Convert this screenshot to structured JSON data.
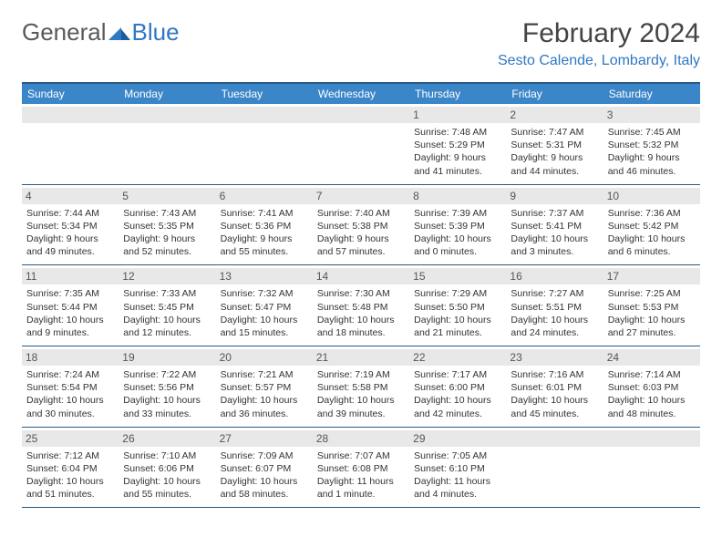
{
  "logo": {
    "text1": "General",
    "text2": "Blue"
  },
  "title": "February 2024",
  "location": "Sesto Calende, Lombardy, Italy",
  "colors": {
    "header_bg": "#3b86c8",
    "border": "#2a5a85",
    "daynum_bg": "#e8e8e8",
    "brand_blue": "#2f78c2"
  },
  "dayNames": [
    "Sunday",
    "Monday",
    "Tuesday",
    "Wednesday",
    "Thursday",
    "Friday",
    "Saturday"
  ],
  "weeks": [
    [
      {
        "empty": true
      },
      {
        "empty": true
      },
      {
        "empty": true
      },
      {
        "empty": true
      },
      {
        "n": "1",
        "sr": "Sunrise: 7:48 AM",
        "ss": "Sunset: 5:29 PM",
        "dl": "Daylight: 9 hours and 41 minutes."
      },
      {
        "n": "2",
        "sr": "Sunrise: 7:47 AM",
        "ss": "Sunset: 5:31 PM",
        "dl": "Daylight: 9 hours and 44 minutes."
      },
      {
        "n": "3",
        "sr": "Sunrise: 7:45 AM",
        "ss": "Sunset: 5:32 PM",
        "dl": "Daylight: 9 hours and 46 minutes."
      }
    ],
    [
      {
        "n": "4",
        "sr": "Sunrise: 7:44 AM",
        "ss": "Sunset: 5:34 PM",
        "dl": "Daylight: 9 hours and 49 minutes."
      },
      {
        "n": "5",
        "sr": "Sunrise: 7:43 AM",
        "ss": "Sunset: 5:35 PM",
        "dl": "Daylight: 9 hours and 52 minutes."
      },
      {
        "n": "6",
        "sr": "Sunrise: 7:41 AM",
        "ss": "Sunset: 5:36 PM",
        "dl": "Daylight: 9 hours and 55 minutes."
      },
      {
        "n": "7",
        "sr": "Sunrise: 7:40 AM",
        "ss": "Sunset: 5:38 PM",
        "dl": "Daylight: 9 hours and 57 minutes."
      },
      {
        "n": "8",
        "sr": "Sunrise: 7:39 AM",
        "ss": "Sunset: 5:39 PM",
        "dl": "Daylight: 10 hours and 0 minutes."
      },
      {
        "n": "9",
        "sr": "Sunrise: 7:37 AM",
        "ss": "Sunset: 5:41 PM",
        "dl": "Daylight: 10 hours and 3 minutes."
      },
      {
        "n": "10",
        "sr": "Sunrise: 7:36 AM",
        "ss": "Sunset: 5:42 PM",
        "dl": "Daylight: 10 hours and 6 minutes."
      }
    ],
    [
      {
        "n": "11",
        "sr": "Sunrise: 7:35 AM",
        "ss": "Sunset: 5:44 PM",
        "dl": "Daylight: 10 hours and 9 minutes."
      },
      {
        "n": "12",
        "sr": "Sunrise: 7:33 AM",
        "ss": "Sunset: 5:45 PM",
        "dl": "Daylight: 10 hours and 12 minutes."
      },
      {
        "n": "13",
        "sr": "Sunrise: 7:32 AM",
        "ss": "Sunset: 5:47 PM",
        "dl": "Daylight: 10 hours and 15 minutes."
      },
      {
        "n": "14",
        "sr": "Sunrise: 7:30 AM",
        "ss": "Sunset: 5:48 PM",
        "dl": "Daylight: 10 hours and 18 minutes."
      },
      {
        "n": "15",
        "sr": "Sunrise: 7:29 AM",
        "ss": "Sunset: 5:50 PM",
        "dl": "Daylight: 10 hours and 21 minutes."
      },
      {
        "n": "16",
        "sr": "Sunrise: 7:27 AM",
        "ss": "Sunset: 5:51 PM",
        "dl": "Daylight: 10 hours and 24 minutes."
      },
      {
        "n": "17",
        "sr": "Sunrise: 7:25 AM",
        "ss": "Sunset: 5:53 PM",
        "dl": "Daylight: 10 hours and 27 minutes."
      }
    ],
    [
      {
        "n": "18",
        "sr": "Sunrise: 7:24 AM",
        "ss": "Sunset: 5:54 PM",
        "dl": "Daylight: 10 hours and 30 minutes."
      },
      {
        "n": "19",
        "sr": "Sunrise: 7:22 AM",
        "ss": "Sunset: 5:56 PM",
        "dl": "Daylight: 10 hours and 33 minutes."
      },
      {
        "n": "20",
        "sr": "Sunrise: 7:21 AM",
        "ss": "Sunset: 5:57 PM",
        "dl": "Daylight: 10 hours and 36 minutes."
      },
      {
        "n": "21",
        "sr": "Sunrise: 7:19 AM",
        "ss": "Sunset: 5:58 PM",
        "dl": "Daylight: 10 hours and 39 minutes."
      },
      {
        "n": "22",
        "sr": "Sunrise: 7:17 AM",
        "ss": "Sunset: 6:00 PM",
        "dl": "Daylight: 10 hours and 42 minutes."
      },
      {
        "n": "23",
        "sr": "Sunrise: 7:16 AM",
        "ss": "Sunset: 6:01 PM",
        "dl": "Daylight: 10 hours and 45 minutes."
      },
      {
        "n": "24",
        "sr": "Sunrise: 7:14 AM",
        "ss": "Sunset: 6:03 PM",
        "dl": "Daylight: 10 hours and 48 minutes."
      }
    ],
    [
      {
        "n": "25",
        "sr": "Sunrise: 7:12 AM",
        "ss": "Sunset: 6:04 PM",
        "dl": "Daylight: 10 hours and 51 minutes."
      },
      {
        "n": "26",
        "sr": "Sunrise: 7:10 AM",
        "ss": "Sunset: 6:06 PM",
        "dl": "Daylight: 10 hours and 55 minutes."
      },
      {
        "n": "27",
        "sr": "Sunrise: 7:09 AM",
        "ss": "Sunset: 6:07 PM",
        "dl": "Daylight: 10 hours and 58 minutes."
      },
      {
        "n": "28",
        "sr": "Sunrise: 7:07 AM",
        "ss": "Sunset: 6:08 PM",
        "dl": "Daylight: 11 hours and 1 minute."
      },
      {
        "n": "29",
        "sr": "Sunrise: 7:05 AM",
        "ss": "Sunset: 6:10 PM",
        "dl": "Daylight: 11 hours and 4 minutes."
      },
      {
        "empty": true
      },
      {
        "empty": true
      }
    ]
  ]
}
